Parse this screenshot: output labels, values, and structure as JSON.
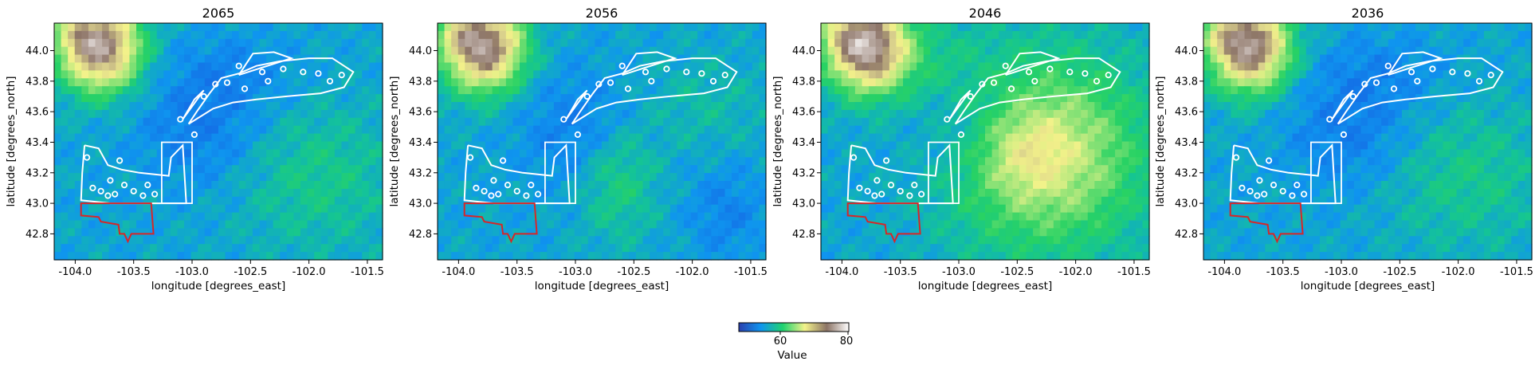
{
  "panels": [
    {
      "title": "2065",
      "style": "cool"
    },
    {
      "title": "2056",
      "style": "mid"
    },
    {
      "title": "2046",
      "style": "warm"
    },
    {
      "title": "2036",
      "style": "cool"
    }
  ],
  "x_axis": {
    "label": "longitude [degrees_east]",
    "ticks": [
      "-104.0",
      "-103.5",
      "-103.0",
      "-102.5",
      "-102.0",
      "-101.5"
    ],
    "tick_values": [
      -104.0,
      -103.5,
      -103.0,
      -102.5,
      -102.0,
      -101.5
    ],
    "range": [
      -104.18,
      -101.37
    ]
  },
  "y_axis": {
    "label": "latitude [degrees_north]",
    "ticks": [
      "44.0",
      "43.8",
      "43.6",
      "43.4",
      "43.2",
      "43.0",
      "42.8"
    ],
    "tick_values": [
      44.0,
      43.8,
      43.6,
      43.4,
      43.2,
      43.0,
      42.8
    ],
    "range": [
      42.63,
      44.18
    ]
  },
  "colorbar": {
    "label": "Value",
    "ticks": [
      "60",
      "80"
    ],
    "tick_values": [
      60,
      80
    ],
    "range": [
      50,
      80
    ],
    "colormap": "terrain"
  },
  "overlay_colors": {
    "white_outline": "#ffffff",
    "red_outline": "#d62728"
  }
}
